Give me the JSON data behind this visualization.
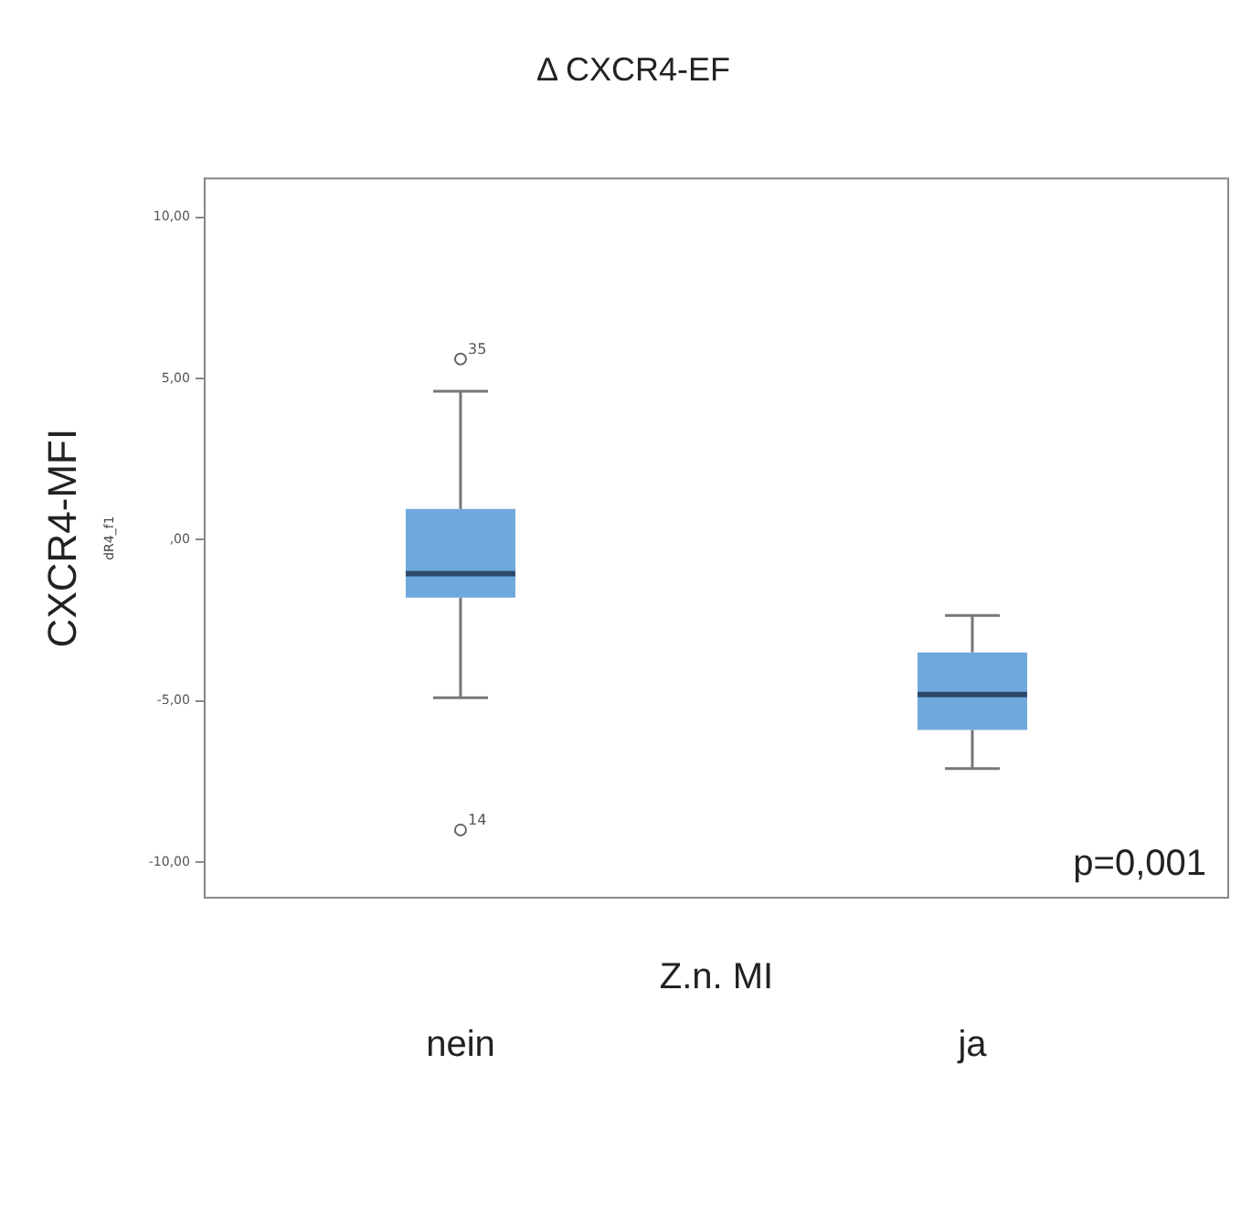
{
  "chart_data": {
    "type": "box",
    "title": "Δ CXCR4-EF",
    "xlabel": "Z.n. MI",
    "ylabel": "CXCR4-MFI",
    "categories": [
      "nein",
      "ja"
    ],
    "boxes": [
      {
        "low": -4.9,
        "q1": -1.8,
        "median": -1.05,
        "q3": 0.95,
        "high": 4.6,
        "outliers": [
          5.6,
          -9.0
        ]
      },
      {
        "low": -7.1,
        "q1": -5.9,
        "median": -4.8,
        "q3": -3.5,
        "high": -2.35
      }
    ],
    "color": "#6fa8dc",
    "ylim": [
      -11.1,
      11.2
    ],
    "yticks": [
      {
        "value": 10,
        "label": "10,00"
      },
      {
        "value": 5,
        "label": "5,00"
      },
      {
        "value": 0,
        "label": ",00"
      },
      {
        "value": -5,
        "label": "-5,00"
      },
      {
        "value": -10,
        "label": "-10,00"
      }
    ],
    "grid": false,
    "legend": false,
    "annotations": [
      "35",
      "14",
      "p=0,001",
      "dR4_f1"
    ]
  }
}
